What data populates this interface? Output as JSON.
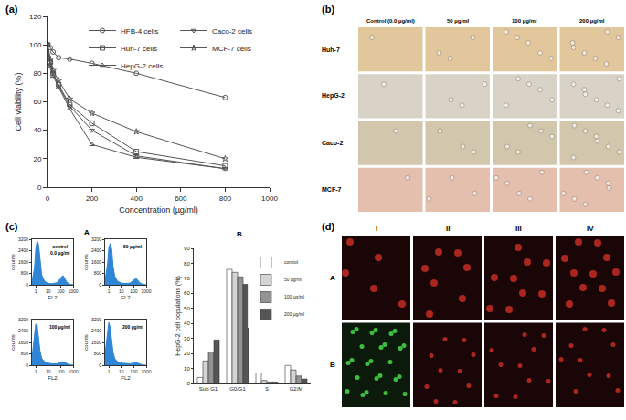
{
  "chart_data": [
    {
      "panel": "(a)",
      "type": "line",
      "x_title": "Concentration (µg/ml)",
      "y_title": "Cell viability (%)",
      "x": [
        0,
        12.5,
        25,
        50,
        100,
        200,
        400,
        800
      ],
      "series": [
        {
          "name": "HFB-4 cells",
          "color": "#555555",
          "marker": "circle",
          "values": [
            100,
            98,
            95,
            91,
            90,
            87,
            80,
            63
          ]
        },
        {
          "name": "Huh-7 cells",
          "color": "#555555",
          "marker": "square",
          "values": [
            100,
            88,
            80,
            72,
            58,
            45,
            25,
            15
          ]
        },
        {
          "name": "HepG-2 cells",
          "color": "#555555",
          "marker": "triangle-up",
          "values": [
            100,
            85,
            78,
            70,
            55,
            30,
            21,
            13
          ]
        },
        {
          "name": "Caco-2 cells",
          "color": "#555555",
          "marker": "triangle-down",
          "values": [
            100,
            86,
            80,
            71,
            57,
            40,
            22,
            13
          ]
        },
        {
          "name": "MCF-7 cells",
          "color": "#555555",
          "marker": "star",
          "values": [
            100,
            90,
            82,
            75,
            62,
            52,
            39,
            20
          ]
        }
      ],
      "xlim": [
        0,
        1000
      ],
      "xticks": [
        0,
        200,
        400,
        600,
        800,
        1000
      ],
      "ylim": [
        0,
        120
      ],
      "yticks": [
        0,
        20,
        40,
        60,
        80,
        100,
        120
      ],
      "legend": "top",
      "grid": false
    },
    {
      "panel": "(c)",
      "part": "A",
      "type": "area",
      "x_title": "FL2",
      "y_title": "counts",
      "log": "x",
      "color": "#2f86d6",
      "x": [
        0.5,
        0.8,
        1,
        1.3,
        1.7,
        2.2,
        3,
        5,
        10,
        20,
        50,
        100,
        150,
        200,
        300,
        500,
        1000
      ],
      "series": [
        {
          "label_lines": [
            "control",
            "0.0 µg/ml"
          ],
          "values": [
            200,
            1200,
            2500,
            3100,
            2800,
            1600,
            700,
            250,
            100,
            80,
            150,
            450,
            650,
            500,
            200,
            50,
            0
          ]
        },
        {
          "label_lines": [
            "50 µg/ml"
          ],
          "values": [
            300,
            1500,
            2600,
            2900,
            2500,
            1300,
            600,
            250,
            120,
            90,
            120,
            300,
            450,
            350,
            150,
            40,
            0
          ]
        },
        {
          "label_lines": [
            "100 µg/ml"
          ],
          "values": [
            500,
            2000,
            2900,
            2800,
            2000,
            1000,
            500,
            250,
            150,
            100,
            100,
            200,
            250,
            200,
            100,
            30,
            0
          ]
        },
        {
          "label_lines": [
            "200 µg/ml"
          ],
          "values": [
            800,
            2300,
            3000,
            2600,
            1700,
            900,
            450,
            250,
            150,
            120,
            100,
            150,
            180,
            150,
            80,
            20,
            0
          ]
        }
      ],
      "xlim": [
        0.5,
        1000
      ],
      "xticks": [
        1,
        10,
        100,
        1000
      ],
      "ylim": [
        0,
        3200
      ],
      "yticks": [
        0,
        800,
        1600,
        2400,
        3200
      ],
      "grid": false
    },
    {
      "panel": "(c)",
      "part": "B",
      "type": "bar",
      "y_title": "HepG-2 cell populations (%)",
      "categories": [
        "Sub G1",
        "G0/G1",
        "S",
        "G2/M"
      ],
      "series": [
        {
          "name": "control",
          "color": "#ffffff",
          "values": [
            4,
            76,
            7,
            12
          ]
        },
        {
          "name": "50 µg/ml",
          "color": "#d4d4d4",
          "values": [
            15,
            74,
            2,
            9
          ]
        },
        {
          "name": "100 µg/ml",
          "color": "#939393",
          "values": [
            21,
            71,
            1,
            5
          ]
        },
        {
          "name": "200 µg/ml",
          "color": "#555555",
          "values": [
            29,
            66,
            1,
            3
          ]
        }
      ],
      "ylim": [
        0,
        90
      ],
      "yticks": [
        0,
        10,
        20,
        30,
        40,
        50,
        60,
        70,
        80,
        90
      ],
      "legend": "top right",
      "grid": false
    }
  ],
  "panel_b": {
    "panel": "(b)",
    "columns": [
      "Control (0.0 µg/ml)",
      "50 µg/ml",
      "100 µg/ml",
      "200 µg/ml"
    ],
    "rows": [
      {
        "label": "Huh-7",
        "color": "#e2c69c"
      },
      {
        "label": "HepG-2",
        "color": "#d8d3c6"
      },
      {
        "label": "Caco-2",
        "color": "#d2c6ad"
      },
      {
        "label": "MCF-7",
        "color": "#e4bfae"
      }
    ]
  },
  "panel_d": {
    "panel": "(d)",
    "columns": [
      "I",
      "II",
      "III",
      "IV"
    ],
    "rows": [
      "A",
      "B"
    ]
  }
}
